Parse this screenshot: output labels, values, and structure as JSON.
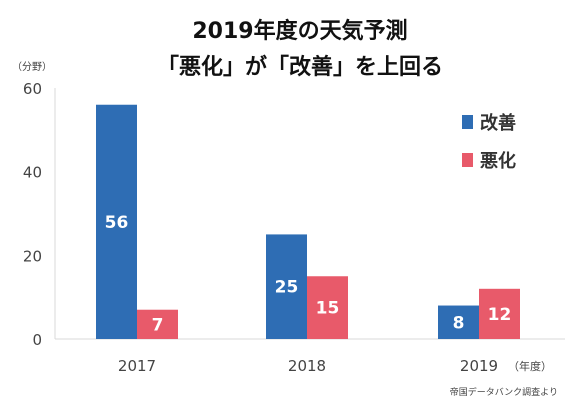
{
  "chart_data": {
    "type": "bar",
    "title": "2019年度の天気予測",
    "subtitle": "「悪化」が「改善」を上回る",
    "ylabel": "（分野）",
    "xunit": "（年度）",
    "categories": [
      "2017",
      "2018",
      "2019"
    ],
    "series": [
      {
        "name": "改善",
        "values": [
          56,
          25,
          8
        ],
        "color": "#2e6db4"
      },
      {
        "name": "悪化",
        "values": [
          7,
          15,
          12
        ],
        "color": "#e85a6a"
      }
    ],
    "ylim": [
      0,
      60
    ],
    "yticks": [
      "0",
      "20",
      "40",
      "60"
    ],
    "legend_position": "top-right",
    "grid": false,
    "axis_color": "#d9d9d9"
  },
  "source": "帝国データバンク調査より"
}
